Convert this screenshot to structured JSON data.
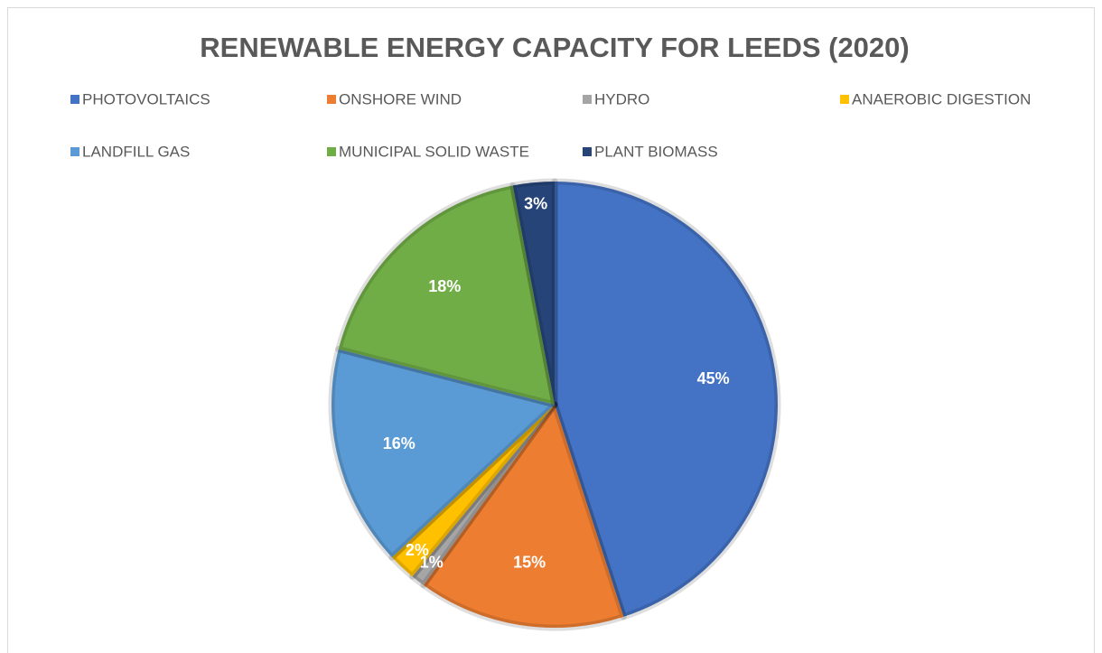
{
  "chart_data": {
    "type": "pie",
    "title": "RENEWABLE ENERGY CAPACITY FOR LEEDS (2020)",
    "categories": [
      "PHOTOVOLTAICS",
      "ONSHORE WIND",
      "HYDRO",
      "ANAEROBIC DIGESTION",
      "LANDFILL GAS",
      "MUNICIPAL SOLID WASTE",
      "PLANT BIOMASS"
    ],
    "values": [
      45,
      15,
      1,
      2,
      16,
      18,
      3
    ],
    "value_labels": [
      "45%",
      "15%",
      "1%",
      "2%",
      "16%",
      "18%",
      "3%"
    ],
    "colors": [
      "#4472c4",
      "#ed7d31",
      "#a5a5a5",
      "#ffc000",
      "#5b9bd5",
      "#70ad47",
      "#264478"
    ],
    "legend": "top"
  }
}
